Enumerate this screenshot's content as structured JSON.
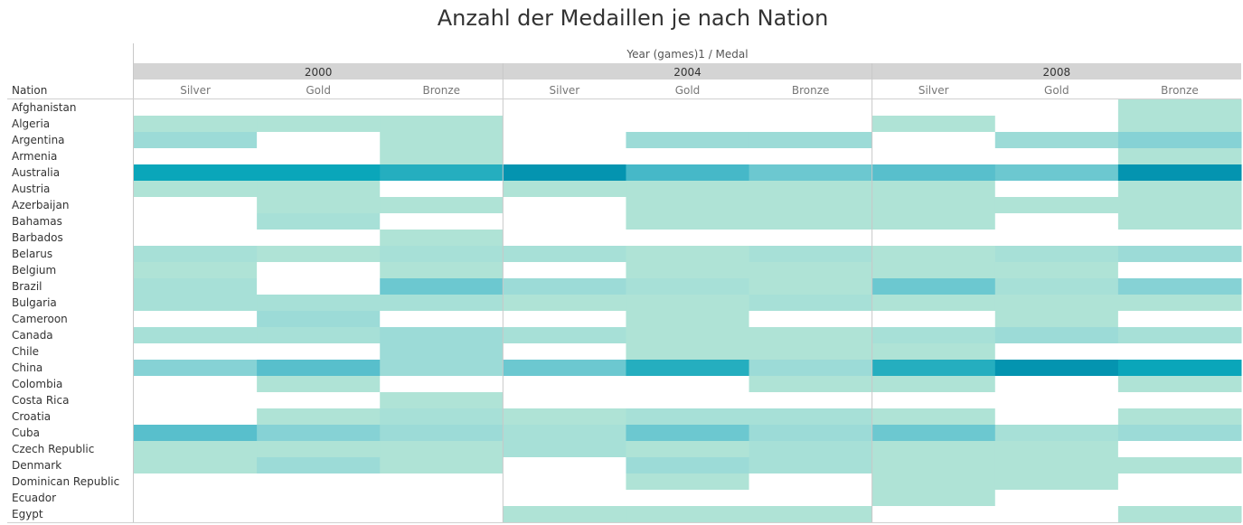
{
  "chart_data": {
    "type": "heatmap",
    "title": "Anzahl der Medaillen je nach Nation",
    "column_header": "Year (games)1 / Medal",
    "row_header": "Nation",
    "years": [
      "2000",
      "2004",
      "2008"
    ],
    "medals": [
      "Silver",
      "Gold",
      "Bronze"
    ],
    "nations": [
      "Afghanistan",
      "Algeria",
      "Argentina",
      "Armenia",
      "Australia",
      "Austria",
      "Azerbaijan",
      "Bahamas",
      "Barbados",
      "Belarus",
      "Belgium",
      "Brazil",
      "Bulgaria",
      "Cameroon",
      "Canada",
      "Chile",
      "China",
      "Colombia",
      "Costa Rica",
      "Croatia",
      "Cuba",
      "Czech Republic",
      "Denmark",
      "Dominican Republic",
      "Ecuador",
      "Egypt"
    ],
    "values": [
      [
        0,
        0,
        0,
        0,
        0,
        0,
        0,
        0,
        1
      ],
      [
        1,
        1,
        1,
        0,
        0,
        0,
        1,
        0,
        1
      ],
      [
        3,
        0,
        1,
        0,
        3,
        3,
        0,
        3,
        4
      ],
      [
        0,
        0,
        1,
        0,
        0,
        0,
        0,
        0,
        1
      ],
      [
        9,
        9,
        8,
        10,
        7,
        5,
        6,
        5,
        10
      ],
      [
        1,
        1,
        0,
        1,
        1,
        1,
        1,
        0,
        1
      ],
      [
        0,
        1,
        1,
        0,
        1,
        1,
        1,
        1,
        1
      ],
      [
        0,
        2,
        0,
        0,
        1,
        1,
        1,
        0,
        1
      ],
      [
        0,
        0,
        1,
        0,
        0,
        0,
        0,
        0,
        0
      ],
      [
        2,
        1,
        2,
        2,
        1,
        2,
        1,
        2,
        3
      ],
      [
        1,
        0,
        1,
        0,
        1,
        1,
        1,
        1,
        0
      ],
      [
        2,
        0,
        5,
        3,
        2,
        1,
        5,
        2,
        4
      ],
      [
        2,
        2,
        2,
        1,
        1,
        2,
        1,
        1,
        1
      ],
      [
        0,
        3,
        0,
        0,
        1,
        0,
        0,
        1,
        0
      ],
      [
        2,
        2,
        3,
        2,
        1,
        1,
        2,
        3,
        2
      ],
      [
        0,
        0,
        3,
        0,
        1,
        1,
        1,
        0,
        0
      ],
      [
        4,
        6,
        3,
        5,
        8,
        3,
        8,
        10,
        9
      ],
      [
        0,
        1,
        0,
        0,
        0,
        1,
        1,
        0,
        1
      ],
      [
        0,
        0,
        1,
        0,
        0,
        0,
        0,
        0,
        0
      ],
      [
        0,
        1,
        2,
        1,
        2,
        2,
        1,
        0,
        1
      ],
      [
        6,
        4,
        3,
        2,
        5,
        3,
        5,
        2,
        3
      ],
      [
        1,
        1,
        1,
        2,
        1,
        2,
        1,
        1,
        0
      ],
      [
        1,
        3,
        1,
        0,
        3,
        2,
        1,
        1,
        1
      ],
      [
        0,
        0,
        0,
        0,
        1,
        0,
        1,
        1,
        0
      ],
      [
        0,
        0,
        0,
        0,
        0,
        0,
        1,
        0,
        0
      ],
      [
        0,
        0,
        0,
        1,
        1,
        1,
        0,
        0,
        1
      ]
    ],
    "color_scale": [
      "#ffffff",
      "#afe3d6",
      "#a7e0d7",
      "#9cdbd7",
      "#86d2d5",
      "#6cc8d0",
      "#58bfcc",
      "#46b8c8",
      "#25aebf",
      "#0aa6ba",
      "#0494b0"
    ],
    "value_range": [
      0,
      10
    ],
    "grid": false
  }
}
